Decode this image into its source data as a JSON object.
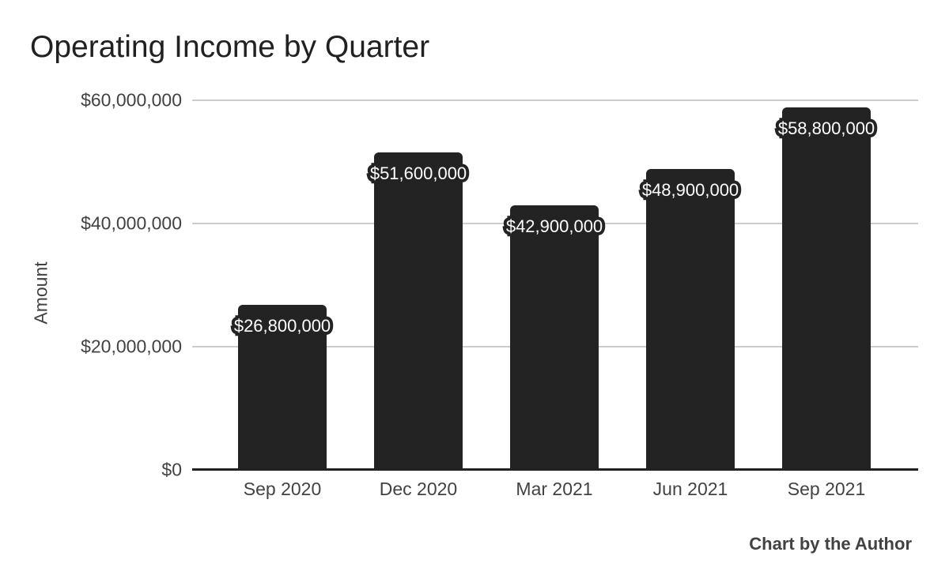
{
  "chart": {
    "title": "Operating Income by Quarter",
    "ylabel": "Amount",
    "footer": "Chart by the Author"
  },
  "chart_data": {
    "type": "bar",
    "title": "Operating Income by Quarter",
    "categories": [
      "Sep 2020",
      "Dec 2020",
      "Mar 2021",
      "Jun 2021",
      "Sep 2021"
    ],
    "values": [
      26800000,
      51600000,
      42900000,
      48900000,
      58800000
    ],
    "value_labels": [
      "$26,800,000",
      "$51,600,000",
      "$42,900,000",
      "$48,900,000",
      "$58,800,000"
    ],
    "xlabel": "",
    "ylabel": "Amount",
    "ylim": [
      0,
      60000000
    ],
    "yticks": [
      {
        "value": 0,
        "label": "$0"
      },
      {
        "value": 20000000,
        "label": "$20,000,000"
      },
      {
        "value": 40000000,
        "label": "$40,000,000"
      },
      {
        "value": 60000000,
        "label": "$60,000,000"
      }
    ],
    "grid": true,
    "legend_position": "none",
    "annotation": "Chart by the Author",
    "colors": {
      "bar": "#232323",
      "annotation_text": "#ffffff",
      "annotation_outline": "#232323",
      "gridline": "#cccccc",
      "axis_line": "#212121",
      "tick_label": "#424242",
      "title": "#212121",
      "footer": "#424242",
      "background": "#ffffff"
    }
  }
}
